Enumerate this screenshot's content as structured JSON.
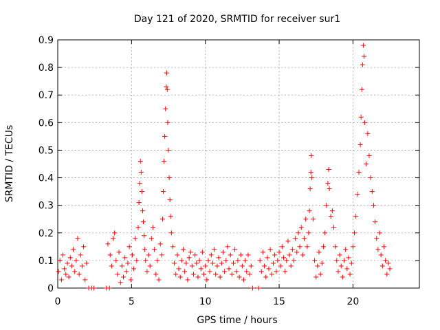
{
  "chart_data": {
    "type": "scatter",
    "title": "Day 121 of 2020, SRMTID for receiver sur1",
    "xlabel": "GPS time / hours",
    "ylabel": "SRMTID / TECUs",
    "xlim": [
      0,
      24.5
    ],
    "ylim": [
      0,
      0.9
    ],
    "xticks": [
      0,
      5,
      10,
      15,
      20
    ],
    "xtick_labels": [
      "0",
      "5",
      "10",
      "15",
      "20"
    ],
    "yticks": [
      0,
      0.1,
      0.2,
      0.3,
      0.4,
      0.5,
      0.6,
      0.7,
      0.8,
      0.9
    ],
    "ytick_labels": [
      "0",
      "0.1",
      "0.2",
      "0.3",
      "0.4",
      "0.5",
      "0.6",
      "0.7",
      "0.8",
      "0.9"
    ],
    "grid": true,
    "marker": "+",
    "color": "#ff0000",
    "series": [
      {
        "name": "sur1",
        "points": [
          [
            0.05,
            0.06
          ],
          [
            0.15,
            0.1
          ],
          [
            0.25,
            0.03
          ],
          [
            0.35,
            0.12
          ],
          [
            0.45,
            0.07
          ],
          [
            0.55,
            0.05
          ],
          [
            0.65,
            0.09
          ],
          [
            0.75,
            0.04
          ],
          [
            0.85,
            0.11
          ],
          [
            0.95,
            0.08
          ],
          [
            1.05,
            0.14
          ],
          [
            1.15,
            0.06
          ],
          [
            1.25,
            0.1
          ],
          [
            1.35,
            0.18
          ],
          [
            1.45,
            0.05
          ],
          [
            1.55,
            0.12
          ],
          [
            1.65,
            0.08
          ],
          [
            1.75,
            0.15
          ],
          [
            1.85,
            0.03
          ],
          [
            1.95,
            0.09
          ],
          [
            2.1,
            0.0
          ],
          [
            2.3,
            0.0
          ],
          [
            2.45,
            0.0
          ],
          [
            3.3,
            0.0
          ],
          [
            3.5,
            0.0
          ],
          [
            3.4,
            0.16
          ],
          [
            3.55,
            0.12
          ],
          [
            3.65,
            0.08
          ],
          [
            3.75,
            0.18
          ],
          [
            3.85,
            0.2
          ],
          [
            3.95,
            0.1
          ],
          [
            4.05,
            0.05
          ],
          [
            4.15,
            0.13
          ],
          [
            4.25,
            0.02
          ],
          [
            4.35,
            0.08
          ],
          [
            4.45,
            0.04
          ],
          [
            4.55,
            0.11
          ],
          [
            4.65,
            0.06
          ],
          [
            4.75,
            0.09
          ],
          [
            4.85,
            0.15
          ],
          [
            4.95,
            0.03
          ],
          [
            5.05,
            0.12
          ],
          [
            5.15,
            0.07
          ],
          [
            5.25,
            0.18
          ],
          [
            5.35,
            0.1
          ],
          [
            5.45,
            0.22
          ],
          [
            5.5,
            0.31
          ],
          [
            5.55,
            0.38
          ],
          [
            5.6,
            0.46
          ],
          [
            5.65,
            0.42
          ],
          [
            5.7,
            0.35
          ],
          [
            5.75,
            0.28
          ],
          [
            5.8,
            0.24
          ],
          [
            5.85,
            0.19
          ],
          [
            5.9,
            0.14
          ],
          [
            5.95,
            0.1
          ],
          [
            6.05,
            0.06
          ],
          [
            6.15,
            0.12
          ],
          [
            6.25,
            0.08
          ],
          [
            6.35,
            0.18
          ],
          [
            6.45,
            0.22
          ],
          [
            6.55,
            0.14
          ],
          [
            6.65,
            0.05
          ],
          [
            6.75,
            0.1
          ],
          [
            6.85,
            0.03
          ],
          [
            6.95,
            0.16
          ],
          [
            7.05,
            0.12
          ],
          [
            7.1,
            0.25
          ],
          [
            7.15,
            0.35
          ],
          [
            7.2,
            0.46
          ],
          [
            7.25,
            0.55
          ],
          [
            7.3,
            0.65
          ],
          [
            7.35,
            0.73
          ],
          [
            7.38,
            0.78
          ],
          [
            7.42,
            0.72
          ],
          [
            7.45,
            0.6
          ],
          [
            7.5,
            0.5
          ],
          [
            7.55,
            0.4
          ],
          [
            7.6,
            0.32
          ],
          [
            7.65,
            0.26
          ],
          [
            7.7,
            0.2
          ],
          [
            7.8,
            0.15
          ],
          [
            7.9,
            0.09
          ],
          [
            8.0,
            0.05
          ],
          [
            8.1,
            0.12
          ],
          [
            8.2,
            0.07
          ],
          [
            8.3,
            0.04
          ],
          [
            8.4,
            0.1
          ],
          [
            8.5,
            0.14
          ],
          [
            8.6,
            0.06
          ],
          [
            8.7,
            0.09
          ],
          [
            8.8,
            0.03
          ],
          [
            8.9,
            0.11
          ],
          [
            9.0,
            0.13
          ],
          [
            9.1,
            0.08
          ],
          [
            9.2,
            0.05
          ],
          [
            9.3,
            0.12
          ],
          [
            9.4,
            0.09
          ],
          [
            9.5,
            0.04
          ],
          [
            9.6,
            0.1
          ],
          [
            9.7,
            0.07
          ],
          [
            9.8,
            0.13
          ],
          [
            9.9,
            0.05
          ],
          [
            10.0,
            0.08
          ],
          [
            10.1,
            0.03
          ],
          [
            10.2,
            0.1
          ],
          [
            10.3,
            0.06
          ],
          [
            10.4,
            0.12
          ],
          [
            10.5,
            0.09
          ],
          [
            10.6,
            0.14
          ],
          [
            10.7,
            0.05
          ],
          [
            10.8,
            0.08
          ],
          [
            10.9,
            0.11
          ],
          [
            11.0,
            0.04
          ],
          [
            11.1,
            0.09
          ],
          [
            11.2,
            0.13
          ],
          [
            11.3,
            0.06
          ],
          [
            11.4,
            0.1
          ],
          [
            11.5,
            0.15
          ],
          [
            11.6,
            0.07
          ],
          [
            11.7,
            0.12
          ],
          [
            11.8,
            0.05
          ],
          [
            11.9,
            0.09
          ],
          [
            12.0,
            0.14
          ],
          [
            12.1,
            0.06
          ],
          [
            12.2,
            0.1
          ],
          [
            12.3,
            0.04
          ],
          [
            12.4,
            0.12
          ],
          [
            12.5,
            0.08
          ],
          [
            12.6,
            0.03
          ],
          [
            12.7,
            0.1
          ],
          [
            12.8,
            0.06
          ],
          [
            12.9,
            0.12
          ],
          [
            13.0,
            0.05
          ],
          [
            13.1,
            0.08
          ],
          [
            13.2,
            0.0
          ],
          [
            13.6,
            0.0
          ],
          [
            13.7,
            0.1
          ],
          [
            13.8,
            0.06
          ],
          [
            13.9,
            0.13
          ],
          [
            14.0,
            0.08
          ],
          [
            14.1,
            0.04
          ],
          [
            14.2,
            0.11
          ],
          [
            14.3,
            0.07
          ],
          [
            14.4,
            0.14
          ],
          [
            14.5,
            0.05
          ],
          [
            14.6,
            0.09
          ],
          [
            14.7,
            0.12
          ],
          [
            14.8,
            0.06
          ],
          [
            14.9,
            0.1
          ],
          [
            15.0,
            0.13
          ],
          [
            15.1,
            0.08
          ],
          [
            15.2,
            0.15
          ],
          [
            15.3,
            0.11
          ],
          [
            15.4,
            0.06
          ],
          [
            15.5,
            0.1
          ],
          [
            15.6,
            0.17
          ],
          [
            15.7,
            0.12
          ],
          [
            15.8,
            0.08
          ],
          [
            15.9,
            0.14
          ],
          [
            16.0,
            0.1
          ],
          [
            16.1,
            0.18
          ],
          [
            16.2,
            0.13
          ],
          [
            16.3,
            0.2
          ],
          [
            16.4,
            0.15
          ],
          [
            16.5,
            0.22
          ],
          [
            16.6,
            0.12
          ],
          [
            16.7,
            0.18
          ],
          [
            16.8,
            0.25
          ],
          [
            16.9,
            0.15
          ],
          [
            17.0,
            0.2
          ],
          [
            17.05,
            0.28
          ],
          [
            17.1,
            0.36
          ],
          [
            17.15,
            0.42
          ],
          [
            17.18,
            0.48
          ],
          [
            17.22,
            0.4
          ],
          [
            17.3,
            0.25
          ],
          [
            17.4,
            0.1
          ],
          [
            17.5,
            0.04
          ],
          [
            17.6,
            0.08
          ],
          [
            17.7,
            0.13
          ],
          [
            17.8,
            0.05
          ],
          [
            17.9,
            0.09
          ],
          [
            18.0,
            0.15
          ],
          [
            18.1,
            0.2
          ],
          [
            18.2,
            0.3
          ],
          [
            18.3,
            0.38
          ],
          [
            18.35,
            0.43
          ],
          [
            18.4,
            0.36
          ],
          [
            18.5,
            0.26
          ],
          [
            18.6,
            0.28
          ],
          [
            18.7,
            0.22
          ],
          [
            18.8,
            0.15
          ],
          [
            18.9,
            0.1
          ],
          [
            19.0,
            0.06
          ],
          [
            19.1,
            0.12
          ],
          [
            19.2,
            0.08
          ],
          [
            19.3,
            0.04
          ],
          [
            19.4,
            0.1
          ],
          [
            19.5,
            0.14
          ],
          [
            19.6,
            0.07
          ],
          [
            19.7,
            0.11
          ],
          [
            19.8,
            0.05
          ],
          [
            19.9,
            0.09
          ],
          [
            20.0,
            0.15
          ],
          [
            20.1,
            0.2
          ],
          [
            20.2,
            0.26
          ],
          [
            20.3,
            0.34
          ],
          [
            20.4,
            0.42
          ],
          [
            20.5,
            0.52
          ],
          [
            20.55,
            0.62
          ],
          [
            20.6,
            0.72
          ],
          [
            20.65,
            0.81
          ],
          [
            20.7,
            0.88
          ],
          [
            20.75,
            0.84
          ],
          [
            20.8,
            0.6
          ],
          [
            20.9,
            0.45
          ],
          [
            21.0,
            0.56
          ],
          [
            21.1,
            0.48
          ],
          [
            21.2,
            0.4
          ],
          [
            21.3,
            0.35
          ],
          [
            21.4,
            0.3
          ],
          [
            21.5,
            0.24
          ],
          [
            21.6,
            0.18
          ],
          [
            21.7,
            0.14
          ],
          [
            21.8,
            0.2
          ],
          [
            21.9,
            0.12
          ],
          [
            22.0,
            0.08
          ],
          [
            22.1,
            0.15
          ],
          [
            22.2,
            0.1
          ],
          [
            22.3,
            0.05
          ],
          [
            22.4,
            0.09
          ],
          [
            22.5,
            0.07
          ]
        ]
      }
    ]
  }
}
